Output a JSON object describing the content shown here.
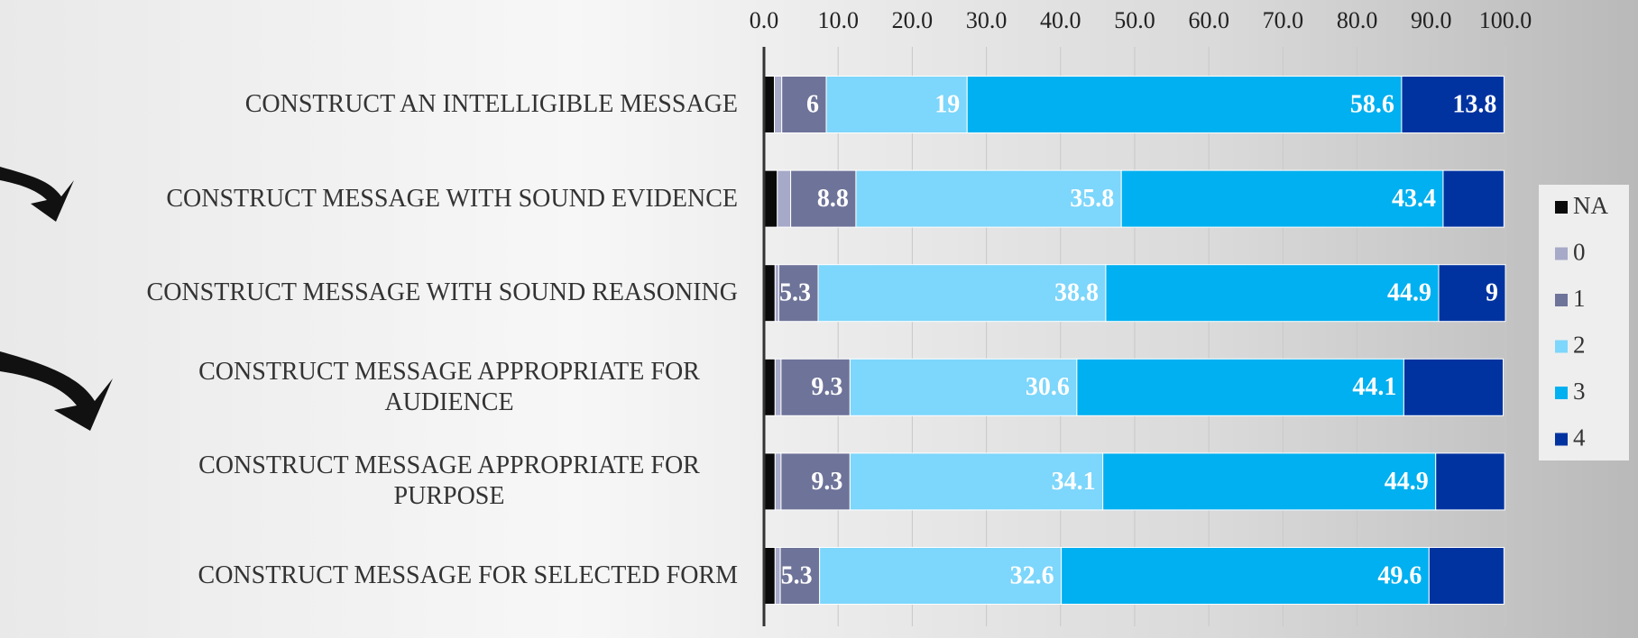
{
  "chart_data": {
    "type": "stacked_bar_horizontal",
    "categories": [
      "CONSTRUCT AN INTELLIGIBLE MESSAGE",
      "CONSTRUCT MESSAGE WITH SOUND EVIDENCE",
      "CONSTRUCT MESSAGE WITH SOUND REASONING",
      "CONSTRUCT MESSAGE APPROPRIATE FOR AUDIENCE",
      "CONSTRUCT MESSAGE APPROPRIATE FOR PURPOSE",
      "CONSTRUCT MESSAGE FOR SELECTED FORM"
    ],
    "series": [
      {
        "name": "NA",
        "color": "#0a0a0a",
        "values": [
          1.4,
          1.8,
          1.5,
          1.5,
          1.5,
          1.5
        ]
      },
      {
        "name": "0",
        "color": "#a6a9c8",
        "values": [
          1.0,
          1.8,
          0.5,
          0.8,
          0.8,
          0.7
        ]
      },
      {
        "name": "1",
        "color": "#6e7399",
        "values": [
          6,
          8.8,
          5.3,
          9.3,
          9.3,
          5.3
        ]
      },
      {
        "name": "2",
        "color": "#7dd6fb",
        "values": [
          19,
          35.8,
          38.8,
          30.6,
          34.1,
          32.6
        ]
      },
      {
        "name": "3",
        "color": "#00b0f0",
        "values": [
          58.6,
          43.4,
          44.9,
          44.1,
          44.9,
          49.6
        ]
      },
      {
        "name": "4",
        "color": "#0033a0",
        "values": [
          13.8,
          8.2,
          9,
          13.4,
          9.3,
          10.1
        ]
      }
    ],
    "xlim": [
      0,
      100
    ],
    "xticks": [
      {
        "value": 0,
        "label": "0.0"
      },
      {
        "value": 10,
        "label": "10.0"
      },
      {
        "value": 20,
        "label": "20.0"
      },
      {
        "value": 30,
        "label": "30.0"
      },
      {
        "value": 40,
        "label": "40.0"
      },
      {
        "value": 50,
        "label": "50.0"
      },
      {
        "value": 60,
        "label": "60.0"
      },
      {
        "value": 70,
        "label": "70.0"
      },
      {
        "value": 80,
        "label": "80.0"
      },
      {
        "value": 90,
        "label": "90.0"
      },
      {
        "value": 100,
        "label": "100.0"
      }
    ],
    "grid": true,
    "legend": "right",
    "data_labels": [
      false,
      false,
      true,
      true,
      true,
      true
    ],
    "value_labels_hidden_for": [
      [],
      [],
      [],
      [],
      [],
      [
        1,
        3,
        4,
        5
      ]
    ]
  }
}
